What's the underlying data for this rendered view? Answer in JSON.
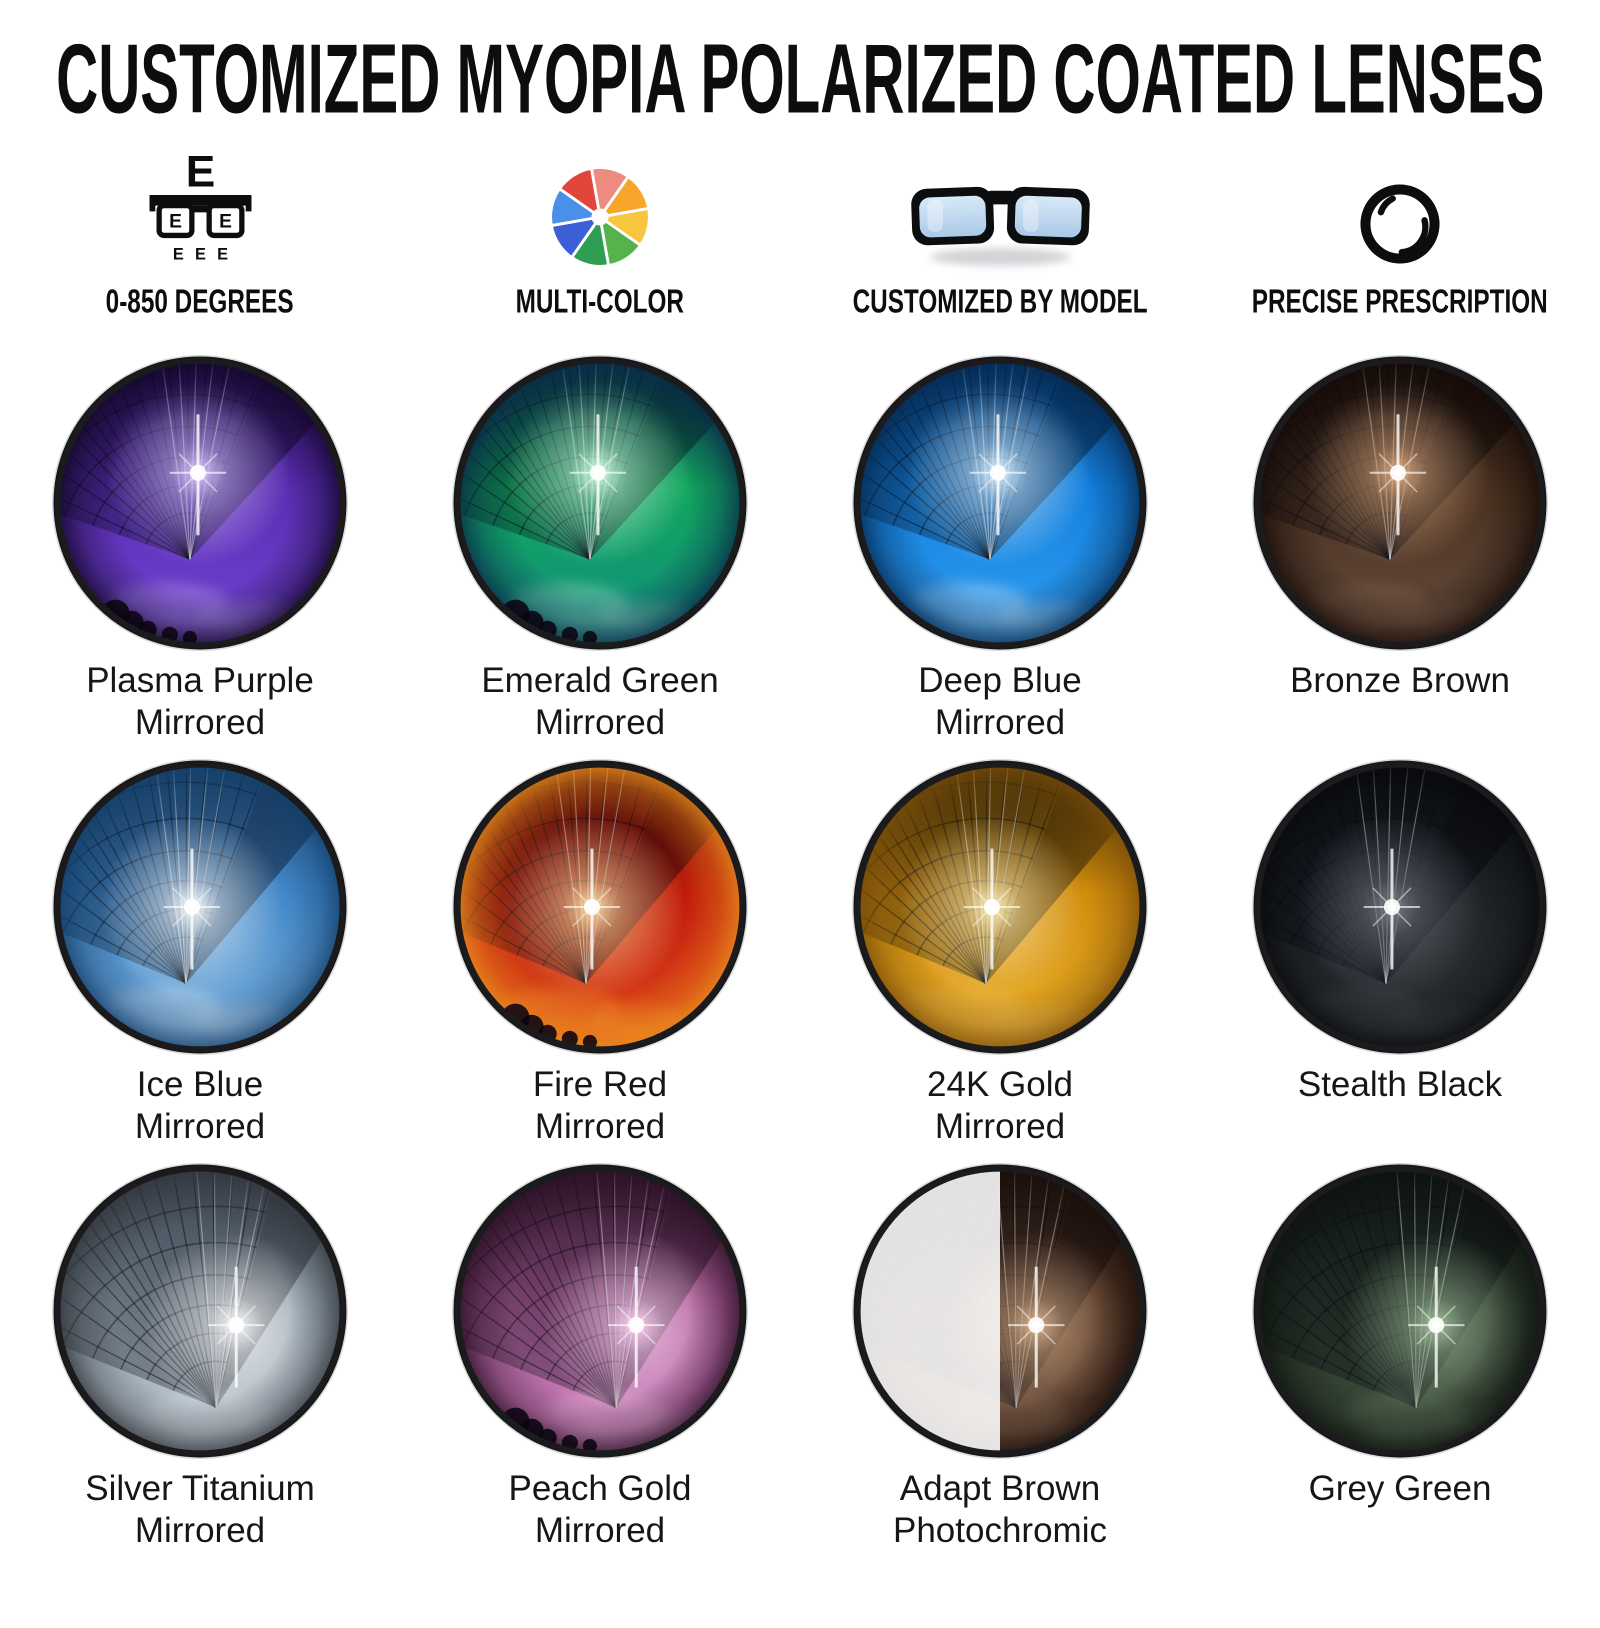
{
  "title": "CUSTOMIZED MYOPIA POLARIZED COATED LENSES",
  "background": "#ffffff",
  "text_color": "#131313",
  "rim_color": "#1b1b1d",
  "features": [
    {
      "label": "0-850 DEGREES",
      "icon": "eye-chart-icon"
    },
    {
      "label": "MULTI-COLOR",
      "icon": "color-wheel-icon"
    },
    {
      "label": "CUSTOMIZED BY MODEL",
      "icon": "sunglasses-icon"
    },
    {
      "label": "PRECISE PRESCRIPTION",
      "icon": "prescription-lens-icon"
    }
  ],
  "eye_chart": {
    "top": "E",
    "lens_left": "E",
    "lens_right": "E",
    "bottom": [
      "E",
      "E",
      "E"
    ]
  },
  "color_wheel_colors": [
    "#ed8b80",
    "#f6a62a",
    "#f8c53e",
    "#54b44a",
    "#2f9e52",
    "#3c5fd7",
    "#4b90e8",
    "#e2453c"
  ],
  "sunglasses": {
    "frame": "#0c0d0f",
    "lens_top": "#d8e9f7",
    "lens_bottom": "#a9c9e7"
  },
  "lenses": [
    {
      "name": "Plasma Purple Mirrored",
      "lines": [
        "Plasma Purple",
        "Mirrored"
      ],
      "palette": {
        "edge": "#130629",
        "top": "#2e1260",
        "sky": "#5a2db2",
        "low": "#7347d6",
        "glow": "#d9c9ff",
        "cloud": "#c9b4f5"
      },
      "trees": true,
      "photochromic": false
    },
    {
      "name": "Emerald Green Mirrored",
      "lines": [
        "Emerald Green",
        "Mirrored"
      ],
      "palette": {
        "edge": "#082c48",
        "top": "#0c3a52",
        "sky": "#12a65e",
        "low": "#128c80",
        "glow": "#d2ffe4",
        "cloud": "#bfeedd"
      },
      "trees": true,
      "photochromic": false
    },
    {
      "name": "Deep Blue Mirrored",
      "lines": [
        "Deep Blue",
        "Mirrored"
      ],
      "palette": {
        "edge": "#042a52",
        "top": "#09498c",
        "sky": "#1480de",
        "low": "#33a1f2",
        "glow": "#dff2ff",
        "cloud": "#e8f6ff"
      },
      "trees": false,
      "photochromic": false
    },
    {
      "name": "Bronze Brown",
      "lines": [
        "Bronze Brown"
      ],
      "palette": {
        "edge": "#140a06",
        "top": "#21120a",
        "sky": "#48301f",
        "low": "#6a4f41",
        "glow": "#e0ad82",
        "cloud": "#8a6a55"
      },
      "trees": false,
      "photochromic": false
    },
    {
      "name": "Ice Blue Mirrored",
      "lines": [
        "Ice Blue",
        "Mirrored"
      ],
      "palette": {
        "edge": "#123f6b",
        "top": "#2c5c8c",
        "sky": "#3f86c9",
        "low": "#85b6de",
        "glow": "#ffffff",
        "cloud": "#eaf3fb"
      },
      "trees": false,
      "photochromic": false
    },
    {
      "name": "Fire Red Mirrored",
      "lines": [
        "Fire Red",
        "Mirrored"
      ],
      "palette": {
        "edge": "#e88c1c",
        "top": "#6e1206",
        "sky": "#c01d0c",
        "low": "#e0491c",
        "glow": "#ffe2a8",
        "cloud": "#f5a030"
      },
      "trees": true,
      "photochromic": false
    },
    {
      "name": "24K Gold Mirrored",
      "lines": [
        "24K Gold",
        "Mirrored"
      ],
      "palette": {
        "edge": "#7c4e08",
        "top": "#3c2b06",
        "sky": "#d18c0c",
        "low": "#ecb22c",
        "glow": "#fff0bc",
        "cloud": "#f3c665"
      },
      "trees": false,
      "photochromic": false
    },
    {
      "name": "Stealth Black",
      "lines": [
        "Stealth Black"
      ],
      "palette": {
        "edge": "#08090b",
        "top": "#101214",
        "sky": "#1d2125",
        "low": "#2d3237",
        "glow": "#787f86",
        "cloud": "#4a5055"
      },
      "trees": false,
      "photochromic": false
    },
    {
      "name": "Silver Titanium Mirrored",
      "lines": [
        "Silver Titanium",
        "Mirrored"
      ],
      "palette": {
        "edge": "#31363c",
        "top": "#4e5a66",
        "sky": "#92a0ac",
        "low": "#c4ced6",
        "glow": "#ffffff",
        "cloud": "#e2e8ee"
      },
      "trees": false,
      "photochromic": false
    },
    {
      "name": "Peach Gold Mirrored",
      "lines": [
        "Peach Gold",
        "Mirrored"
      ],
      "palette": {
        "edge": "#2e1028",
        "top": "#3b1b30",
        "sky": "#a65890",
        "low": "#d288c6",
        "glow": "#ffd9f4",
        "cloud": "#f6c9e6"
      },
      "trees": true,
      "photochromic": false
    },
    {
      "name": "Adapt Brown Photochromic",
      "lines": [
        "Adapt Brown",
        "Photochromic"
      ],
      "palette": {
        "edge": "#1b0e09",
        "top": "#2c1b10",
        "sky": "#4e3222",
        "low": "#684a3b",
        "glow": "#dcb48e",
        "cloud": "#9a7a62"
      },
      "trees": false,
      "photochromic": true
    },
    {
      "name": "Grey Green",
      "lines": [
        "Grey Green"
      ],
      "palette": {
        "edge": "#0d120d",
        "top": "#151c15",
        "sky": "#29372a",
        "low": "#40513f",
        "glow": "#a4c49e",
        "cloud": "#6a8266"
      },
      "trees": false,
      "photochromic": false
    }
  ]
}
